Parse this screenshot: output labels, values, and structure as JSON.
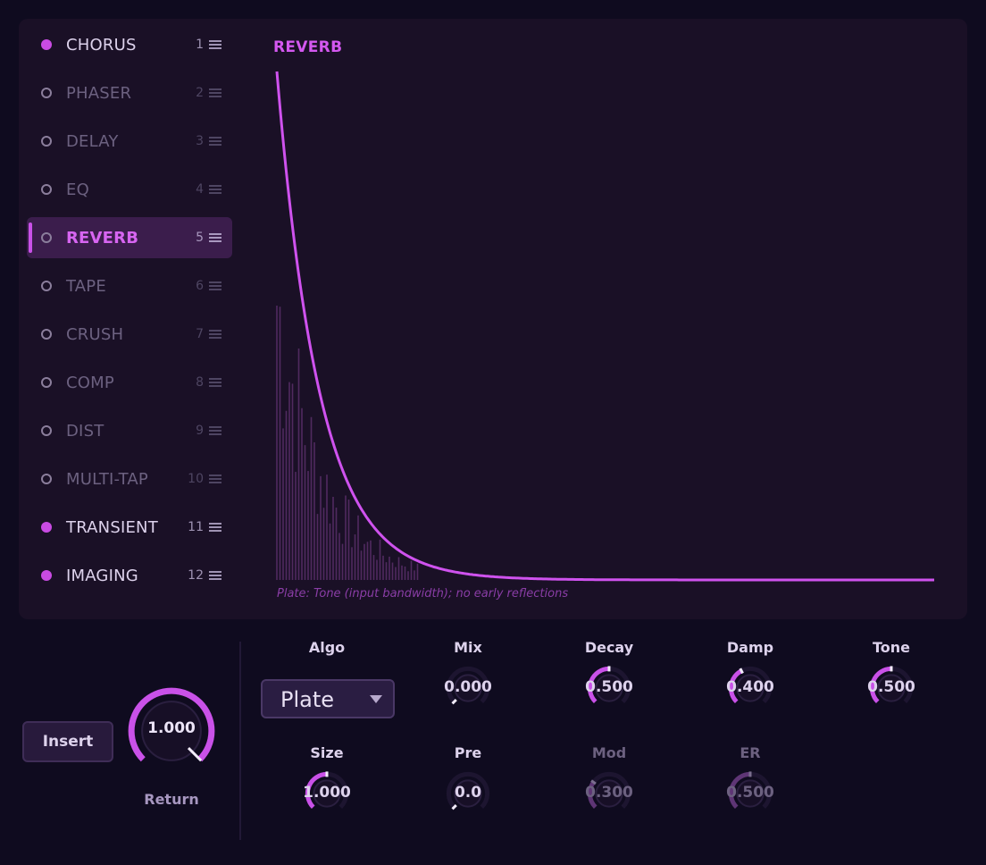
{
  "effects": [
    {
      "name": "CHORUS",
      "num": "1",
      "state": "on"
    },
    {
      "name": "PHASER",
      "num": "2",
      "state": "off"
    },
    {
      "name": "DELAY",
      "num": "3",
      "state": "off"
    },
    {
      "name": "EQ",
      "num": "4",
      "state": "off"
    },
    {
      "name": "REVERB",
      "num": "5",
      "state": "active"
    },
    {
      "name": "TAPE",
      "num": "6",
      "state": "off"
    },
    {
      "name": "CRUSH",
      "num": "7",
      "state": "off"
    },
    {
      "name": "COMP",
      "num": "8",
      "state": "off"
    },
    {
      "name": "DIST",
      "num": "9",
      "state": "off"
    },
    {
      "name": "MULTI-TAP",
      "num": "10",
      "state": "off"
    },
    {
      "name": "TRANSIENT",
      "num": "11",
      "state": "on"
    },
    {
      "name": "IMAGING",
      "num": "12",
      "state": "on"
    }
  ],
  "viz": {
    "title": "REVERB",
    "caption": "Plate: Tone (input bandwidth); no early reflections"
  },
  "controls": {
    "insert_label": "Insert",
    "return": {
      "label": "Return",
      "value": "1.000",
      "level": 1.0
    },
    "algo": {
      "label": "Algo",
      "value": "Plate"
    },
    "params": [
      {
        "key": "mix",
        "label": "Mix",
        "value": "0.000",
        "level": 0.0,
        "enabled": true
      },
      {
        "key": "decay",
        "label": "Decay",
        "value": "0.500",
        "level": 0.5,
        "enabled": true
      },
      {
        "key": "damp",
        "label": "Damp",
        "value": "0.400",
        "level": 0.4,
        "enabled": true
      },
      {
        "key": "tone",
        "label": "Tone",
        "value": "0.500",
        "level": 0.5,
        "enabled": true
      },
      {
        "key": "size",
        "label": "Size",
        "value": "1.000",
        "level": 0.5,
        "enabled": true
      },
      {
        "key": "pre",
        "label": "Pre",
        "value": "0.0",
        "level": 0.0,
        "enabled": true
      },
      {
        "key": "mod",
        "label": "Mod",
        "value": "0.300",
        "level": 0.3,
        "enabled": false
      },
      {
        "key": "er",
        "label": "ER",
        "value": "0.500",
        "level": 0.5,
        "enabled": false
      }
    ]
  },
  "colors": {
    "accent": "#c951e8",
    "background": "#0f0b1f",
    "panel": "#1a1026",
    "active_row": "#3b1d4c"
  }
}
